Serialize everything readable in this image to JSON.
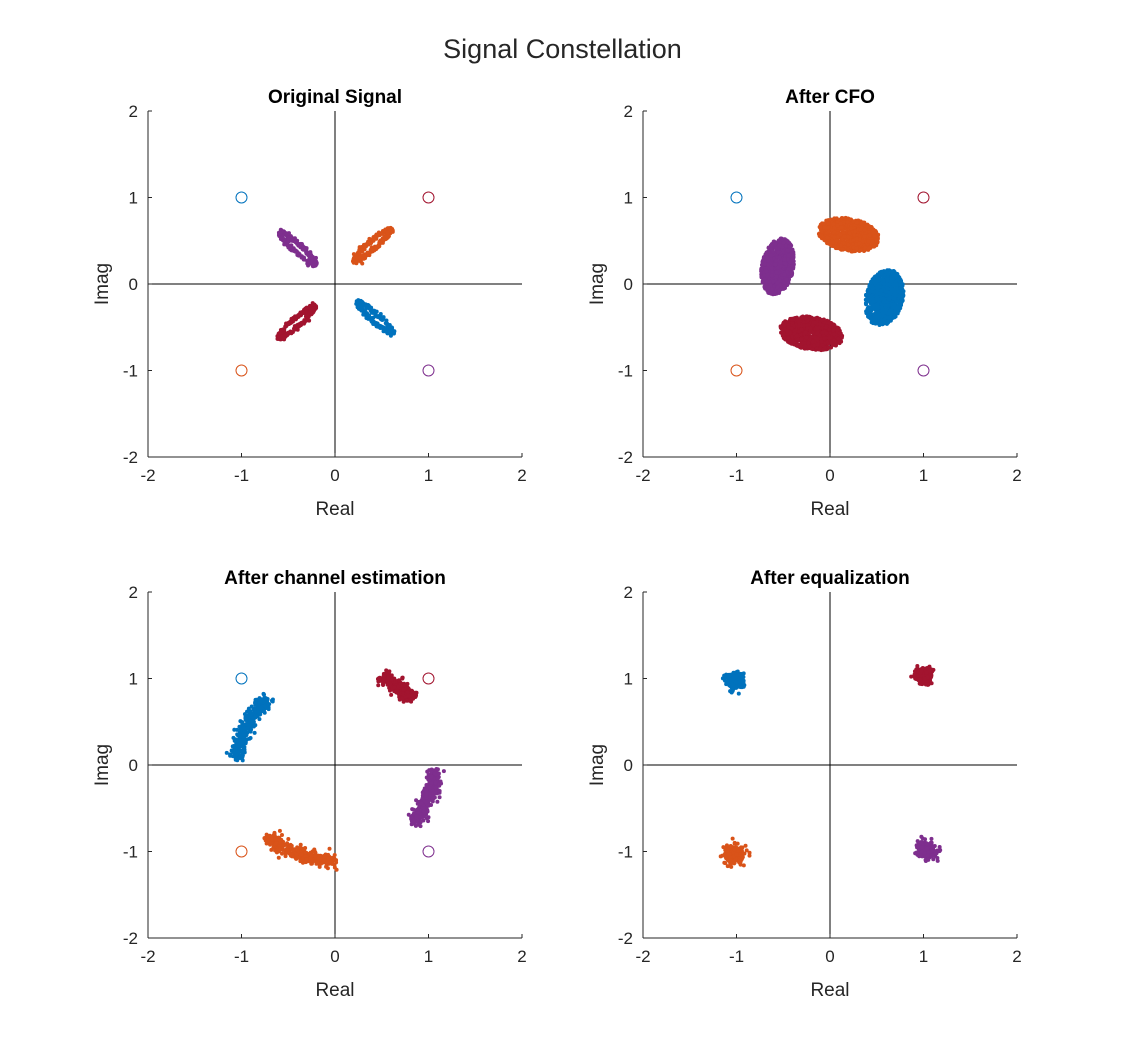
{
  "figure": {
    "title": "Signal Constellation"
  },
  "colors": {
    "blue": "#0072bd",
    "orange": "#d95319",
    "purple": "#7e2f8e",
    "red": "#a2142f",
    "axis": "#262626"
  },
  "chart_data": [
    {
      "type": "scatter",
      "title": "Original Signal",
      "xlabel": "Real",
      "ylabel": "Imag",
      "xlim": [
        -2,
        2
      ],
      "ylim": [
        -2,
        2
      ],
      "xticks": [
        "-2",
        "-1",
        "0",
        "1",
        "2"
      ],
      "yticks": [
        "-2",
        "-1",
        "0",
        "1",
        "2"
      ],
      "grid": false,
      "reference_points": [
        {
          "x": -1,
          "y": 1,
          "color": "blue"
        },
        {
          "x": 1,
          "y": 1,
          "color": "red"
        },
        {
          "x": -1,
          "y": -1,
          "color": "orange"
        },
        {
          "x": 1,
          "y": -1,
          "color": "purple"
        }
      ],
      "clusters": [
        {
          "color": "orange",
          "shape": "ring",
          "cx": 0.4,
          "cy": 0.45,
          "a": 0.26,
          "b": 0.045,
          "angle": 44,
          "n": 260
        },
        {
          "color": "purple",
          "shape": "ring",
          "cx": -0.4,
          "cy": 0.41,
          "a": 0.26,
          "b": 0.045,
          "angle": -44,
          "n": 260
        },
        {
          "color": "blue",
          "shape": "ring",
          "cx": 0.43,
          "cy": -0.39,
          "a": 0.25,
          "b": 0.045,
          "angle": -44,
          "n": 260
        },
        {
          "color": "red",
          "shape": "ring",
          "cx": -0.41,
          "cy": -0.44,
          "a": 0.26,
          "b": 0.045,
          "angle": 44,
          "n": 260
        }
      ]
    },
    {
      "type": "scatter",
      "title": "After CFO",
      "xlabel": "Real",
      "ylabel": "Imag",
      "xlim": [
        -2,
        2
      ],
      "ylim": [
        -2,
        2
      ],
      "xticks": [
        "-2",
        "-1",
        "0",
        "1",
        "2"
      ],
      "yticks": [
        "-2",
        "-1",
        "0",
        "1",
        "2"
      ],
      "grid": false,
      "reference_points": [
        {
          "x": -1,
          "y": 1,
          "color": "blue"
        },
        {
          "x": 1,
          "y": 1,
          "color": "red"
        },
        {
          "x": -1,
          "y": -1,
          "color": "orange"
        },
        {
          "x": 1,
          "y": -1,
          "color": "purple"
        }
      ],
      "clusters": [
        {
          "color": "orange",
          "shape": "blob",
          "cx": 0.2,
          "cy": 0.57,
          "a": 0.33,
          "b": 0.19,
          "angle": -12,
          "n": 900
        },
        {
          "color": "purple",
          "shape": "blob",
          "cx": -0.56,
          "cy": 0.2,
          "a": 0.33,
          "b": 0.17,
          "angle": 80,
          "n": 900
        },
        {
          "color": "blue",
          "shape": "blob",
          "cx": 0.58,
          "cy": -0.16,
          "a": 0.33,
          "b": 0.2,
          "angle": 78,
          "n": 900
        },
        {
          "color": "red",
          "shape": "blob",
          "cx": -0.2,
          "cy": -0.57,
          "a": 0.34,
          "b": 0.19,
          "angle": -10,
          "n": 900
        }
      ]
    },
    {
      "type": "scatter",
      "title": "After channel estimation",
      "xlabel": "Real",
      "ylabel": "Imag",
      "xlim": [
        -2,
        2
      ],
      "ylim": [
        -2,
        2
      ],
      "xticks": [
        "-2",
        "-1",
        "0",
        "1",
        "2"
      ],
      "yticks": [
        "-2",
        "-1",
        "0",
        "1",
        "2"
      ],
      "grid": false,
      "reference_points": [
        {
          "x": -1,
          "y": 1,
          "color": "blue"
        },
        {
          "x": 1,
          "y": 1,
          "color": "red"
        },
        {
          "x": -1,
          "y": -1,
          "color": "orange"
        },
        {
          "x": 1,
          "y": -1,
          "color": "purple"
        }
      ],
      "clusters": [
        {
          "color": "red",
          "shape": "arc",
          "r": 1.13,
          "a0": 64,
          "a1": 43,
          "n": 320
        },
        {
          "color": "blue",
          "shape": "arc",
          "r": 1.05,
          "a0": 176,
          "a1": 133,
          "n": 320
        },
        {
          "color": "orange",
          "shape": "arc",
          "r": 1.1,
          "a0": 229,
          "a1": 270,
          "n": 320
        },
        {
          "color": "purple",
          "shape": "arc",
          "r": 1.07,
          "a0": 322,
          "a1": 357,
          "n": 320
        }
      ]
    },
    {
      "type": "scatter",
      "title": "After equalization",
      "xlabel": "Real",
      "ylabel": "Imag",
      "xlim": [
        -2,
        2
      ],
      "ylim": [
        -2,
        2
      ],
      "xticks": [
        "-2",
        "-1",
        "0",
        "1",
        "2"
      ],
      "yticks": [
        "-2",
        "-1",
        "0",
        "1",
        "2"
      ],
      "grid": false,
      "reference_points": [],
      "clusters": [
        {
          "color": "blue",
          "shape": "point",
          "cx": -1.02,
          "cy": 0.98,
          "s": 0.045,
          "n": 300
        },
        {
          "color": "red",
          "shape": "point",
          "cx": 1.0,
          "cy": 1.03,
          "s": 0.045,
          "n": 300
        },
        {
          "color": "orange",
          "shape": "point",
          "cx": -1.02,
          "cy": -1.04,
          "s": 0.05,
          "n": 300
        },
        {
          "color": "purple",
          "shape": "point",
          "cx": 1.03,
          "cy": -0.98,
          "s": 0.045,
          "n": 300
        }
      ]
    }
  ]
}
